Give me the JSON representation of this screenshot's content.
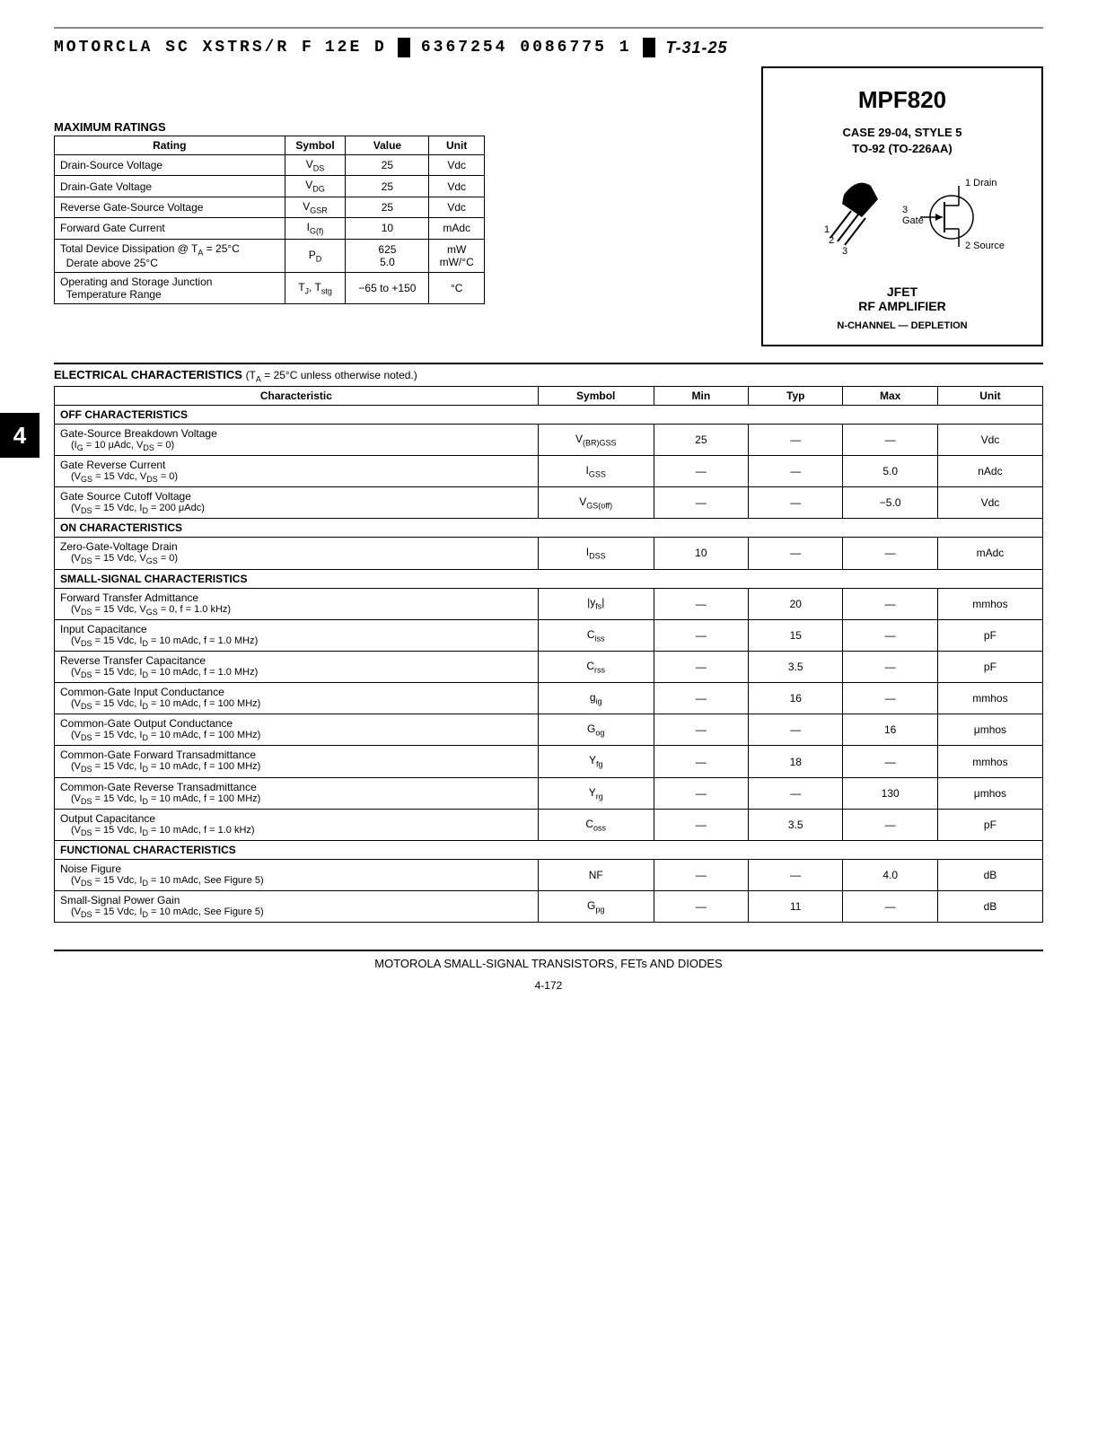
{
  "header": {
    "left": "MOTORCLA SC  XSTRS/R F",
    "mid1": "12E D",
    "mid2": "6367254 0086775 1",
    "right": "T-31-25"
  },
  "sideTab": "4",
  "partBox": {
    "partNo": "MPF820",
    "case1": "CASE 29-04, STYLE 5",
    "case2": "TO-92 (TO-226AA)",
    "pin1": "1",
    "pin2": "2",
    "pin3": "3",
    "drain": "1 Drain",
    "gate": "Gate",
    "gateNum": "3",
    "source": "2 Source",
    "jfet": "JFET",
    "rf": "RF AMPLIFIER",
    "channel": "N-CHANNEL — DEPLETION"
  },
  "maxRatings": {
    "title": "MAXIMUM RATINGS",
    "headers": [
      "Rating",
      "Symbol",
      "Value",
      "Unit"
    ],
    "rows": [
      {
        "r": "Drain-Source Voltage",
        "s": "V<sub>DS</sub>",
        "v": "25",
        "u": "Vdc"
      },
      {
        "r": "Drain-Gate Voltage",
        "s": "V<sub>DG</sub>",
        "v": "25",
        "u": "Vdc"
      },
      {
        "r": "Reverse Gate-Source Voltage",
        "s": "V<sub>GSR</sub>",
        "v": "25",
        "u": "Vdc"
      },
      {
        "r": "Forward Gate Current",
        "s": "I<sub>G(f)</sub>",
        "v": "10",
        "u": "mAdc"
      },
      {
        "r": "Total Device Dissipation @ T<sub>A</sub> = 25°C<br>&nbsp;&nbsp;Derate above 25°C",
        "s": "P<sub>D</sub>",
        "v": "625<br>5.0",
        "u": "mW<br>mW/°C"
      },
      {
        "r": "Operating and Storage Junction<br>&nbsp;&nbsp;Temperature Range",
        "s": "T<sub>J</sub>, T<sub>stg</sub>",
        "v": "−65 to +150",
        "u": "°C"
      }
    ]
  },
  "elec": {
    "title": "ELECTRICAL CHARACTERISTICS",
    "note": "(T<sub>A</sub> = 25°C unless otherwise noted.)",
    "headers": [
      "Characteristic",
      "Symbol",
      "Min",
      "Typ",
      "Max",
      "Unit"
    ],
    "sections": [
      {
        "title": "OFF CHARACTERISTICS",
        "rows": [
          {
            "n": "Gate-Source Breakdown Voltage",
            "c": "(I<sub>G</sub> = 10 μAdc, V<sub>DS</sub> = 0)",
            "s": "V<sub>(BR)GSS</sub>",
            "min": "25",
            "typ": "—",
            "max": "—",
            "u": "Vdc"
          },
          {
            "n": "Gate Reverse Current",
            "c": "(V<sub>GS</sub> = 15 Vdc, V<sub>DS</sub> = 0)",
            "s": "I<sub>GSS</sub>",
            "min": "—",
            "typ": "—",
            "max": "5.0",
            "u": "nAdc"
          },
          {
            "n": "Gate Source Cutoff Voltage",
            "c": "(V<sub>DS</sub> = 15 Vdc, I<sub>D</sub> = 200 μAdc)",
            "s": "V<sub>GS(off)</sub>",
            "min": "—",
            "typ": "—",
            "max": "−5.0",
            "u": "Vdc"
          }
        ]
      },
      {
        "title": "ON CHARACTERISTICS",
        "rows": [
          {
            "n": "Zero-Gate-Voltage Drain",
            "c": "(V<sub>DS</sub> = 15 Vdc, V<sub>GS</sub> = 0)",
            "s": "I<sub>DSS</sub>",
            "min": "10",
            "typ": "—",
            "max": "—",
            "u": "mAdc"
          }
        ]
      },
      {
        "title": "SMALL-SIGNAL CHARACTERISTICS",
        "rows": [
          {
            "n": "Forward Transfer Admittance",
            "c": "(V<sub>DS</sub> = 15 Vdc, V<sub>GS</sub> = 0, f = 1.0 kHz)",
            "s": "|y<sub>fs</sub>|",
            "min": "—",
            "typ": "20",
            "max": "—",
            "u": "mmhos"
          },
          {
            "n": "Input Capacitance",
            "c": "(V<sub>DS</sub> = 15 Vdc, I<sub>D</sub> = 10 mAdc, f = 1.0 MHz)",
            "s": "C<sub>iss</sub>",
            "min": "—",
            "typ": "15",
            "max": "—",
            "u": "pF"
          },
          {
            "n": "Reverse Transfer Capacitance",
            "c": "(V<sub>DS</sub> = 15 Vdc, I<sub>D</sub> = 10 mAdc, f = 1.0 MHz)",
            "s": "C<sub>rss</sub>",
            "min": "—",
            "typ": "3.5",
            "max": "—",
            "u": "pF"
          },
          {
            "n": "Common-Gate Input Conductance",
            "c": "(V<sub>DS</sub> = 15 Vdc, I<sub>D</sub> = 10 mAdc, f = 100 MHz)",
            "s": "g<sub>ig</sub>",
            "min": "—",
            "typ": "16",
            "max": "—",
            "u": "mmhos"
          },
          {
            "n": "Common-Gate Output Conductance",
            "c": "(V<sub>DS</sub> = 15 Vdc, I<sub>D</sub> = 10 mAdc, f = 100 MHz)",
            "s": "G<sub>og</sub>",
            "min": "—",
            "typ": "—",
            "max": "16",
            "u": "μmhos"
          },
          {
            "n": "Common-Gate Forward Transadmittance",
            "c": "(V<sub>DS</sub> = 15 Vdc, I<sub>D</sub> = 10 mAdc, f = 100 MHz)",
            "s": "Y<sub>fg</sub>",
            "min": "—",
            "typ": "18",
            "max": "—",
            "u": "mmhos"
          },
          {
            "n": "Common-Gate Reverse Transadmittance",
            "c": "(V<sub>DS</sub> = 15 Vdc, I<sub>D</sub> = 10 mAdc, f = 100 MHz)",
            "s": "Y<sub>rg</sub>",
            "min": "—",
            "typ": "—",
            "max": "130",
            "u": "μmhos"
          },
          {
            "n": "Output Capacitance",
            "c": "(V<sub>DS</sub> = 15 Vdc, I<sub>D</sub> = 10 mAdc, f = 1.0 kHz)",
            "s": "C<sub>oss</sub>",
            "min": "—",
            "typ": "3.5",
            "max": "—",
            "u": "pF"
          }
        ]
      },
      {
        "title": "FUNCTIONAL CHARACTERISTICS",
        "rows": [
          {
            "n": "Noise Figure",
            "c": "(V<sub>DS</sub> = 15 Vdc, I<sub>D</sub> = 10 mAdc, See Figure 5)",
            "s": "NF",
            "min": "—",
            "typ": "—",
            "max": "4.0",
            "u": "dB"
          },
          {
            "n": "Small-Signal Power Gain",
            "c": "(V<sub>DS</sub> = 15 Vdc, I<sub>D</sub> = 10 mAdc, See Figure 5)",
            "s": "G<sub>pg</sub>",
            "min": "—",
            "typ": "11",
            "max": "—",
            "u": "dB"
          }
        ]
      }
    ]
  },
  "footer": {
    "text": "MOTOROLA SMALL-SIGNAL TRANSISTORS, FETs AND DIODES",
    "page": "4-172"
  }
}
